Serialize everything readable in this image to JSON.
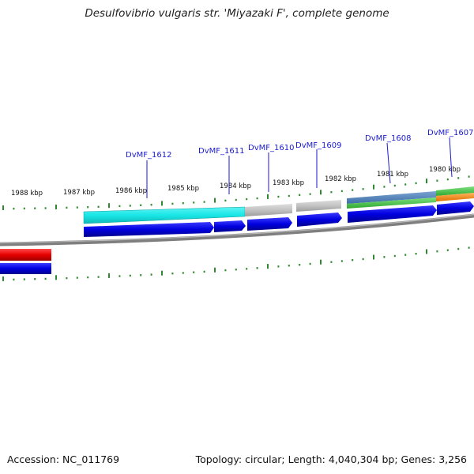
{
  "title": "Desulfovibrio vulgaris str. 'Miyazaki F', complete genome",
  "footer": {
    "accession": "Accession: NC_011769",
    "summary": "Topology: circular; Length: 4,040,304 bp; Genes: 3,256"
  },
  "colors": {
    "gene_cds": "#0000dd",
    "cyan_feature": "#19e6e6",
    "gray_feature": "#bdbdbd",
    "steelblue_feature": "#4f7fb7",
    "green_feature": "#3fbf3f",
    "orange_feature": "#f08a1e",
    "red_feature": "#e60000",
    "backbone": "#808080",
    "ticks": "#2f8a2f",
    "label_text": "#1a1ad0"
  },
  "kbp_labels": [
    "1988 kbp",
    "1987 kbp",
    "1986 kbp",
    "1985 kbp",
    "1984 kbp",
    "1983 kbp",
    "1982 kbp",
    "1981 kbp",
    "1980 kbp"
  ],
  "gene_labels": [
    "DvMF_1612",
    "DvMF_1611",
    "DvMF_1610",
    "DvMF_1609",
    "DvMF_1608",
    "DvMF_1607"
  ]
}
